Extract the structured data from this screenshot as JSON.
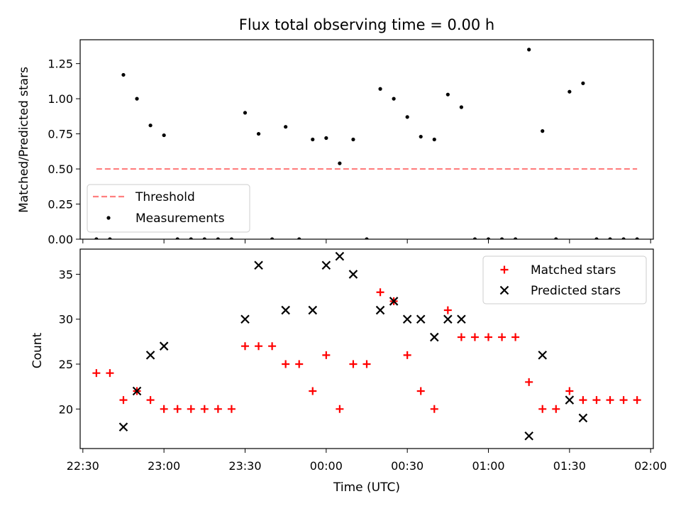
{
  "chart_data": [
    {
      "type": "scatter",
      "title": "Flux total observing time = 0.00 h",
      "xlabel": "",
      "ylabel": "Matched/Predicted stars",
      "ylim": [
        0,
        1.42
      ],
      "yticks": [
        0.0,
        0.25,
        0.5,
        0.75,
        1.0,
        1.25
      ],
      "ytick_labels": [
        "0.00",
        "0.25",
        "0.50",
        "0.75",
        "1.00",
        "1.25"
      ],
      "legend": {
        "placement": "lower-left",
        "entries": [
          "Threshold",
          "Measurements"
        ]
      },
      "threshold": {
        "name": "Threshold",
        "value": 0.5,
        "x_start": "22:35",
        "x_end": "01:55",
        "color": "#ff7f7f",
        "style": "dashed"
      },
      "series": [
        {
          "name": "Measurements",
          "color": "#000000",
          "marker": "dot",
          "x": [
            "22:35",
            "22:40",
            "22:45",
            "22:50",
            "22:55",
            "23:00",
            "23:05",
            "23:10",
            "23:15",
            "23:20",
            "23:25",
            "23:30",
            "23:35",
            "23:40",
            "23:45",
            "23:50",
            "23:55",
            "00:00",
            "00:05",
            "00:10",
            "00:15",
            "00:20",
            "00:25",
            "00:30",
            "00:35",
            "00:40",
            "00:45",
            "00:50",
            "00:55",
            "01:00",
            "01:05",
            "01:10",
            "01:15",
            "01:20",
            "01:25",
            "01:30",
            "01:35",
            "01:40",
            "01:45",
            "01:50",
            "01:55"
          ],
          "y": [
            0.0,
            0.0,
            1.17,
            1.0,
            0.81,
            0.74,
            0.0,
            0.0,
            0.0,
            0.0,
            0.0,
            0.9,
            0.75,
            0.0,
            0.8,
            0.0,
            0.71,
            0.72,
            0.54,
            0.71,
            0.0,
            1.07,
            1.0,
            0.87,
            0.73,
            0.71,
            1.03,
            0.94,
            0.0,
            0.0,
            0.0,
            0.0,
            1.35,
            0.77,
            0.0,
            1.05,
            1.11,
            0.0,
            0.0,
            0.0,
            0.0
          ]
        }
      ]
    },
    {
      "type": "scatter",
      "title": "",
      "xlabel": "Time (UTC)",
      "ylabel": "Count",
      "ylim": [
        15.6,
        37.8
      ],
      "yticks": [
        20,
        25,
        30,
        35
      ],
      "ytick_labels": [
        "20",
        "25",
        "30",
        "35"
      ],
      "xlim": [
        "22:29",
        "02:01"
      ],
      "xticks": [
        "22:30",
        "23:00",
        "23:30",
        "00:00",
        "00:30",
        "01:00",
        "01:30",
        "02:00"
      ],
      "xtick_minutes": [
        -90,
        -60,
        -30,
        0,
        30,
        60,
        90,
        120
      ],
      "legend": {
        "placement": "upper-right",
        "entries": [
          "Matched stars",
          "Predicted stars"
        ]
      },
      "series": [
        {
          "name": "Matched stars",
          "color": "#ff0000",
          "marker": "plus",
          "x": [
            "22:35",
            "22:40",
            "22:45",
            "22:50",
            "22:55",
            "23:00",
            "23:05",
            "23:10",
            "23:15",
            "23:20",
            "23:25",
            "23:30",
            "23:35",
            "23:40",
            "23:45",
            "23:50",
            "23:55",
            "00:00",
            "00:05",
            "00:10",
            "00:15",
            "00:20",
            "00:25",
            "00:30",
            "00:35",
            "00:40",
            "00:45",
            "00:50",
            "00:55",
            "01:00",
            "01:05",
            "01:10",
            "01:15",
            "01:20",
            "01:25",
            "01:30",
            "01:35",
            "01:40",
            "01:45",
            "01:50",
            "01:55"
          ],
          "y": [
            24,
            24,
            21,
            22,
            21,
            20,
            20,
            20,
            20,
            20,
            20,
            27,
            27,
            27,
            25,
            25,
            22,
            26,
            20,
            25,
            25,
            33,
            32,
            26,
            22,
            20,
            31,
            28,
            28,
            28,
            28,
            28,
            23,
            20,
            20,
            22,
            21,
            21,
            21,
            21,
            21
          ]
        },
        {
          "name": "Predicted stars",
          "color": "#000000",
          "marker": "x",
          "x": [
            "22:45",
            "22:50",
            "22:55",
            "23:00",
            "23:30",
            "23:35",
            "23:45",
            "23:55",
            "00:00",
            "00:05",
            "00:10",
            "00:20",
            "00:25",
            "00:30",
            "00:35",
            "00:40",
            "00:45",
            "00:50",
            "01:15",
            "01:20",
            "01:30",
            "01:35"
          ],
          "y": [
            18,
            22,
            26,
            27,
            30,
            36,
            31,
            31,
            36,
            37,
            35,
            31,
            32,
            30,
            30,
            28,
            30,
            30,
            17,
            26,
            21,
            19
          ]
        }
      ]
    }
  ]
}
